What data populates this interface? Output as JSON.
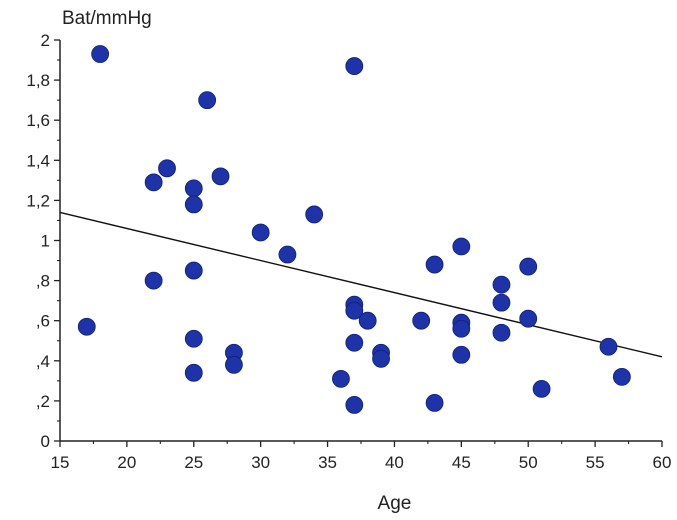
{
  "chart_data": {
    "type": "scatter",
    "title": "",
    "xlabel": "Age",
    "ylabel": "Bat/mmHg",
    "xlim": [
      15,
      60
    ],
    "ylim": [
      0,
      2
    ],
    "x_ticks": [
      15,
      20,
      25,
      30,
      35,
      40,
      45,
      50,
      55,
      60
    ],
    "x_tick_labels": [
      "15",
      "20",
      "25",
      "30",
      "35",
      "40",
      "45",
      "50",
      "55",
      "60"
    ],
    "y_ticks": [
      0,
      0.2,
      0.4,
      0.6,
      0.8,
      1.0,
      1.2,
      1.4,
      1.6,
      1.8,
      2.0
    ],
    "y_tick_labels": [
      "0",
      ",2",
      ",4",
      ",6",
      ",8",
      "1",
      "1,2",
      "1,4",
      "1,6",
      "1,8",
      "2"
    ],
    "grid": false,
    "legend": "none",
    "marker_color": "#1f33a8",
    "trendline": {
      "x": [
        15,
        60
      ],
      "y": [
        1.14,
        0.42
      ],
      "color": "#111111"
    },
    "series": [
      {
        "points": [
          [
            17,
            0.57
          ],
          [
            18,
            1.93
          ],
          [
            22,
            1.29
          ],
          [
            22,
            0.8
          ],
          [
            23,
            1.36
          ],
          [
            25,
            1.26
          ],
          [
            25,
            1.18
          ],
          [
            25,
            0.85
          ],
          [
            25,
            0.51
          ],
          [
            25,
            0.34
          ],
          [
            26,
            1.7
          ],
          [
            27,
            1.32
          ],
          [
            28,
            0.44
          ],
          [
            28,
            0.38
          ],
          [
            30,
            1.04
          ],
          [
            32,
            0.93
          ],
          [
            34,
            1.13
          ],
          [
            36,
            0.31
          ],
          [
            37,
            1.87
          ],
          [
            37,
            0.68
          ],
          [
            37,
            0.65
          ],
          [
            37,
            0.49
          ],
          [
            37,
            0.18
          ],
          [
            38,
            0.6
          ],
          [
            39,
            0.44
          ],
          [
            39,
            0.41
          ],
          [
            42,
            0.6
          ],
          [
            43,
            0.88
          ],
          [
            43,
            0.19
          ],
          [
            45,
            0.97
          ],
          [
            45,
            0.59
          ],
          [
            45,
            0.56
          ],
          [
            45,
            0.43
          ],
          [
            48,
            0.78
          ],
          [
            48,
            0.69
          ],
          [
            48,
            0.54
          ],
          [
            50,
            0.87
          ],
          [
            50,
            0.61
          ],
          [
            51,
            0.26
          ],
          [
            56,
            0.47
          ],
          [
            57,
            0.32
          ]
        ]
      }
    ]
  }
}
